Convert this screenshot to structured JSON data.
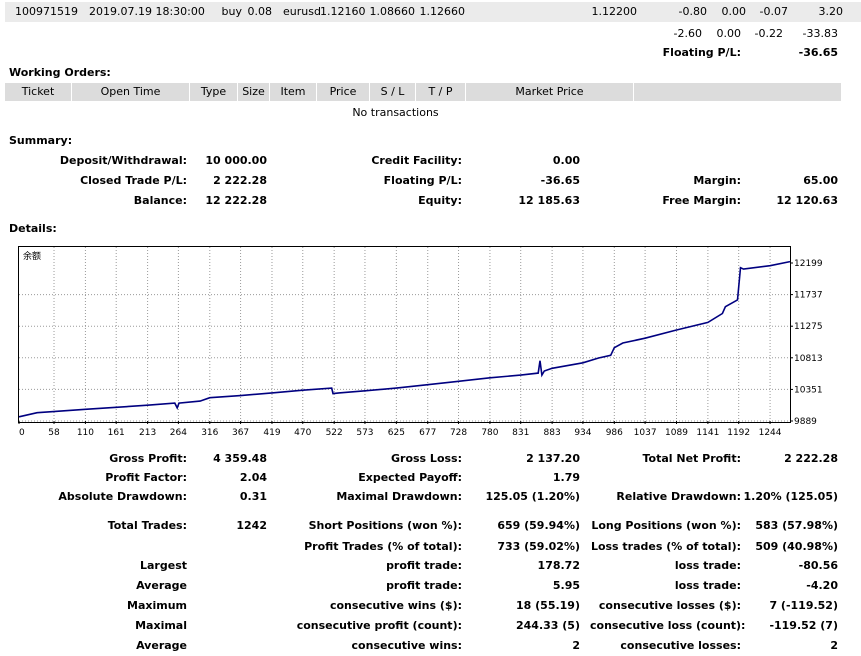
{
  "open_trade": {
    "ticket": "100971519",
    "open_time": "2019.07.19 18:30:00",
    "type": "buy",
    "size": "0.08",
    "item": "eurusd",
    "price": "1.12160",
    "sl": "1.08660",
    "tp": "1.12660",
    "market_price": "1.12200",
    "commission": "-0.80",
    "taxes": "0.00",
    "swap": "-0.07",
    "profit": "3.20"
  },
  "totals": {
    "commission": "-2.60",
    "taxes": "0.00",
    "swap": "-0.22",
    "profit": "-33.83"
  },
  "floating": {
    "label": "Floating P/L:",
    "value": "-36.65"
  },
  "working_orders": {
    "title": "Working Orders:",
    "headers": [
      "Ticket",
      "Open Time",
      "Type",
      "Size",
      "Item",
      "Price",
      "S / L",
      "T / P",
      "Market Price"
    ],
    "empty_text": "No transactions"
  },
  "summary": {
    "title": "Summary:",
    "deposit_label": "Deposit/Withdrawal:",
    "deposit_value": "10 000.00",
    "credit_label": "Credit Facility:",
    "credit_value": "0.00",
    "closed_label": "Closed Trade P/L:",
    "closed_value": "2 222.28",
    "floating_label": "Floating P/L:",
    "floating_value": "-36.65",
    "margin_label": "Margin:",
    "margin_value": "65.00",
    "balance_label": "Balance:",
    "balance_value": "12 222.28",
    "equity_label": "Equity:",
    "equity_value": "12 185.63",
    "free_margin_label": "Free Margin:",
    "free_margin_value": "12 120.63"
  },
  "details": {
    "title": "Details:"
  },
  "chart_data": {
    "type": "line",
    "title": "余额",
    "x_ticks": [
      "0",
      "58",
      "110",
      "161",
      "213",
      "264",
      "316",
      "367",
      "419",
      "470",
      "522",
      "573",
      "625",
      "677",
      "728",
      "780",
      "831",
      "883",
      "934",
      "986",
      "1037",
      "1089",
      "1141",
      "1192",
      "1244"
    ],
    "y_ticks": [
      "12199",
      "11737",
      "11275",
      "10813",
      "10351",
      "9889"
    ],
    "xlim": [
      0,
      1277
    ],
    "ylim": [
      9889,
      12199
    ],
    "grid": true,
    "line_color": "#000080",
    "series": [
      {
        "x": [
          0,
          30,
          60,
          110,
          161,
          213,
          258,
          262,
          265,
          300,
          316,
          367,
          419,
          470,
          518,
          520,
          530,
          573,
          625,
          677,
          728,
          780,
          831,
          860,
          863,
          866,
          870,
          883,
          934,
          960,
          980,
          986,
          1000,
          1037,
          1089,
          1141,
          1165,
          1170,
          1190,
          1195,
          1200,
          1244,
          1277
        ],
        "y": [
          9950,
          10010,
          10030,
          10060,
          10090,
          10120,
          10150,
          10080,
          10150,
          10180,
          10230,
          10260,
          10300,
          10340,
          10370,
          10290,
          10300,
          10330,
          10370,
          10420,
          10470,
          10520,
          10560,
          10590,
          10770,
          10560,
          10620,
          10660,
          10740,
          10810,
          10850,
          10960,
          11030,
          11100,
          11220,
          11330,
          11460,
          11560,
          11660,
          12130,
          12110,
          12160,
          12220
        ]
      }
    ]
  },
  "stats": {
    "gross_profit_label": "Gross Profit:",
    "gross_profit_value": "4 359.48",
    "gross_loss_label": "Gross Loss:",
    "gross_loss_value": "2 137.20",
    "total_net_label": "Total Net Profit:",
    "total_net_value": "2 222.28",
    "profit_factor_label": "Profit Factor:",
    "profit_factor_value": "2.04",
    "expected_payoff_label": "Expected Payoff:",
    "expected_payoff_value": "1.79",
    "abs_dd_label": "Absolute Drawdown:",
    "abs_dd_value": "0.31",
    "max_dd_label": "Maximal Drawdown:",
    "max_dd_value": "125.05 (1.20%)",
    "rel_dd_label": "Relative Drawdown:",
    "rel_dd_value": "1.20% (125.05)",
    "total_trades_label": "Total Trades:",
    "total_trades_value": "1242",
    "short_label": "Short Positions (won %):",
    "short_value": "659 (59.94%)",
    "long_label": "Long Positions (won %):",
    "long_value": "583 (57.98%)",
    "profit_trades_label": "Profit Trades (% of total):",
    "profit_trades_value": "733 (59.02%)",
    "loss_trades_label": "Loss trades (% of total):",
    "loss_trades_value": "509 (40.98%)",
    "largest_label": "Largest",
    "largest_profit_label": "profit trade:",
    "largest_profit_value": "178.72",
    "largest_loss_label": "loss trade:",
    "largest_loss_value": "-80.56",
    "average_label": "Average",
    "avg_profit_label": "profit trade:",
    "avg_profit_value": "5.95",
    "avg_loss_label": "loss trade:",
    "avg_loss_value": "-4.20",
    "maximum_label": "Maximum",
    "max_wins_label": "consecutive wins ($):",
    "max_wins_value": "18 (55.19)",
    "max_losses_label": "consecutive losses ($):",
    "max_losses_value": "7 (-119.52)",
    "maximal_label": "Maximal",
    "maximal_profit_label": "consecutive profit (count):",
    "maximal_profit_value": "244.33 (5)",
    "maximal_loss_label": "consecutive loss (count):",
    "maximal_loss_value": "-119.52 (7)",
    "average2_label": "Average",
    "avg_wins_label": "consecutive wins:",
    "avg_wins_value": "2",
    "avg_losses_label": "consecutive losses:",
    "avg_losses_value": "2"
  }
}
